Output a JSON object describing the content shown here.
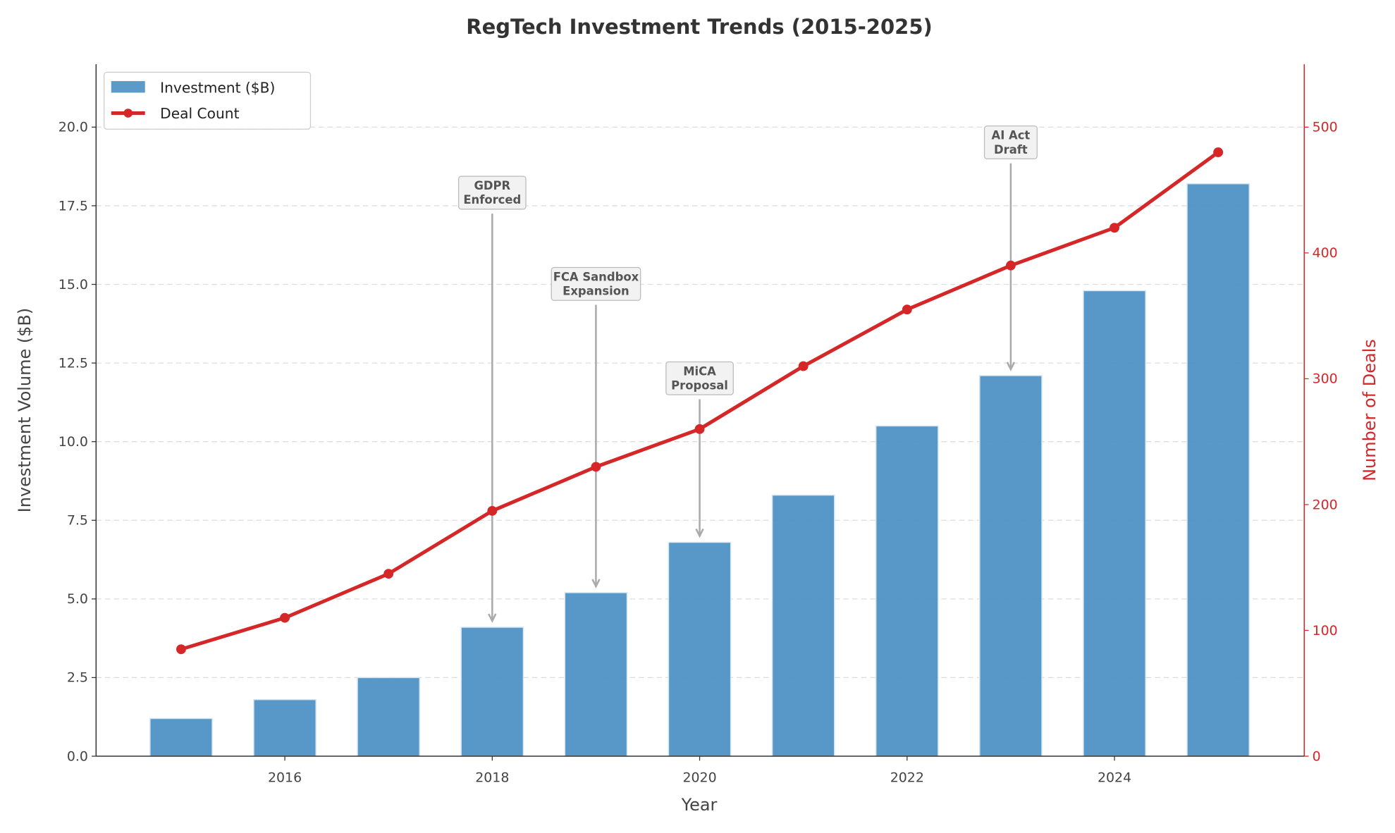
{
  "chart_data": {
    "type": "bar+line",
    "title": "RegTech Investment Trends (2015-2025)",
    "xlabel": "Year",
    "ylabel_left": "Investment Volume ($B)",
    "ylabel_right": "Number of Deals",
    "x": [
      2015,
      2016,
      2017,
      2018,
      2019,
      2020,
      2021,
      2022,
      2023,
      2024,
      2025
    ],
    "x_ticks": [
      "2016",
      "2018",
      "2020",
      "2022",
      "2024"
    ],
    "y_left_ticks": [
      "0.0",
      "2.5",
      "5.0",
      "7.5",
      "10.0",
      "12.5",
      "15.0",
      "17.5",
      "20.0"
    ],
    "y_right_ticks": [
      "0",
      "100",
      "200",
      "300",
      "400",
      "500"
    ],
    "xlim": [
      2014.18,
      2025.83
    ],
    "ylim_left": [
      0,
      22
    ],
    "ylim_right": [
      0,
      550
    ],
    "grid": "horizontal dashed",
    "legend_position": "top-left",
    "series": [
      {
        "name": "Investment ($B)",
        "type": "bar",
        "axis": "left",
        "color": "#4a8fc3",
        "values": [
          1.2,
          1.8,
          2.5,
          4.1,
          5.2,
          6.8,
          8.3,
          10.5,
          12.1,
          14.8,
          18.2
        ]
      },
      {
        "name": "Deal Count",
        "type": "line",
        "axis": "right",
        "color": "#d62728",
        "values": [
          85,
          110,
          145,
          195,
          230,
          260,
          310,
          355,
          390,
          420,
          480
        ]
      }
    ],
    "annotations": [
      {
        "year": 2018,
        "lines": [
          "GDPR",
          "Enforced"
        ],
        "text_y": 17.9,
        "arrow_to": 4.3
      },
      {
        "year": 2019,
        "lines": [
          "FCA Sandbox",
          "Expansion"
        ],
        "text_y": 15.0,
        "arrow_to": 5.4
      },
      {
        "year": 2020,
        "lines": [
          "MiCA",
          "Proposal"
        ],
        "text_y": 12.0,
        "arrow_to": 7.0
      },
      {
        "year": 2023,
        "lines": [
          "AI Act",
          "Draft"
        ],
        "text_y": 19.5,
        "arrow_to": 12.3
      }
    ],
    "colors": {
      "axis_right": "#d62728",
      "text": "#333333",
      "annotation_arrow": "#aaaaaa"
    }
  }
}
